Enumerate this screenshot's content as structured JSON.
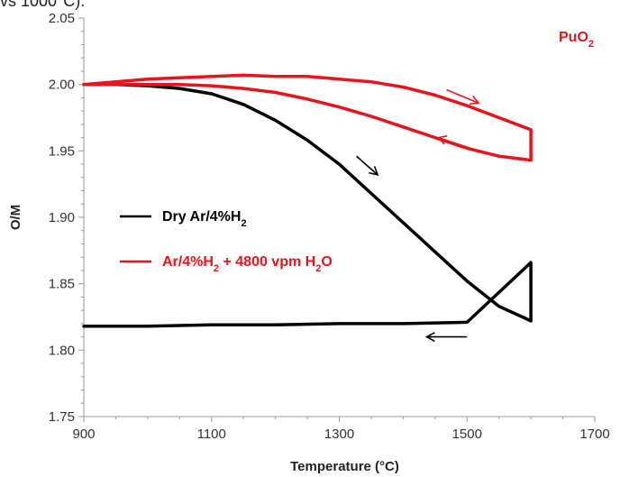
{
  "top_text_fragment": "vs 1000°C).",
  "chart_data": {
    "type": "line",
    "title": "",
    "xlabel": "Temperature (°C)",
    "ylabel": "O/M",
    "xlim": [
      900,
      1700
    ],
    "ylim": [
      1.75,
      2.05
    ],
    "x_ticks": [
      "900",
      "1100",
      "1300",
      "1500",
      "1700"
    ],
    "y_ticks": [
      "1.75",
      "1.80",
      "1.85",
      "1.90",
      "1.95",
      "2.00",
      "2.05"
    ],
    "grid": false,
    "annotation": {
      "text": "PuO",
      "subscript": "2",
      "color": "#e8141c"
    },
    "legend_position": "center-left",
    "legend": [
      {
        "parts": [
          [
            "Dry Ar/4%H",
            false
          ],
          [
            "2",
            true
          ]
        ],
        "color": "#000000"
      },
      {
        "parts": [
          [
            "Ar/4%H",
            false
          ],
          [
            "2",
            true
          ],
          [
            " + 4800 vpm H",
            false
          ],
          [
            "2",
            true
          ],
          [
            "O",
            false
          ]
        ],
        "color": "#e8141c"
      }
    ],
    "series": [
      {
        "name": "Dry Ar/4%H2",
        "color": "#000000",
        "x": [
          900,
          950,
          1000,
          1050,
          1100,
          1150,
          1200,
          1250,
          1300,
          1350,
          1400,
          1450,
          1500,
          1550,
          1600,
          1600,
          1600,
          1500,
          1400,
          1300,
          1200,
          1100,
          1000,
          900
        ],
        "y": [
          2.0,
          2.0,
          1.999,
          1.997,
          1.993,
          1.985,
          1.973,
          1.958,
          1.94,
          1.918,
          1.896,
          1.874,
          1.852,
          1.833,
          1.822,
          1.843,
          1.866,
          1.821,
          1.82,
          1.82,
          1.819,
          1.819,
          1.818,
          1.818
        ]
      },
      {
        "name": "Ar/4%H2 + 4800 vpm H2O",
        "color": "#e8141c",
        "x": [
          900,
          950,
          1000,
          1050,
          1100,
          1150,
          1200,
          1250,
          1300,
          1350,
          1400,
          1450,
          1500,
          1550,
          1600,
          1600,
          1600,
          1550,
          1500,
          1450,
          1400,
          1350,
          1300,
          1250,
          1200,
          1150,
          1100,
          1050,
          1000,
          950,
          900
        ],
        "y": [
          2.0,
          2.002,
          2.004,
          2.005,
          2.006,
          2.007,
          2.006,
          2.006,
          2.004,
          2.002,
          1.998,
          1.992,
          1.984,
          1.975,
          1.966,
          1.955,
          1.943,
          1.946,
          1.952,
          1.96,
          1.968,
          1.976,
          1.983,
          1.989,
          1.994,
          1.997,
          1.999,
          2.0,
          2.0,
          2.0,
          2.0
        ]
      }
    ],
    "arrows": [
      {
        "color": "#e8141c",
        "x0": 1468,
        "y0": 1.996,
        "x1": 1518,
        "y1": 1.986
      },
      {
        "color": "#e8141c",
        "x0": 1518,
        "y0": 1.95,
        "x1": 1455,
        "y1": 1.96
      },
      {
        "color": "#000000",
        "x0": 1327,
        "y0": 1.946,
        "x1": 1360,
        "y1": 1.932
      },
      {
        "color": "#000000",
        "x0": 1500,
        "y0": 1.81,
        "x1": 1437,
        "y1": 1.81
      }
    ]
  }
}
